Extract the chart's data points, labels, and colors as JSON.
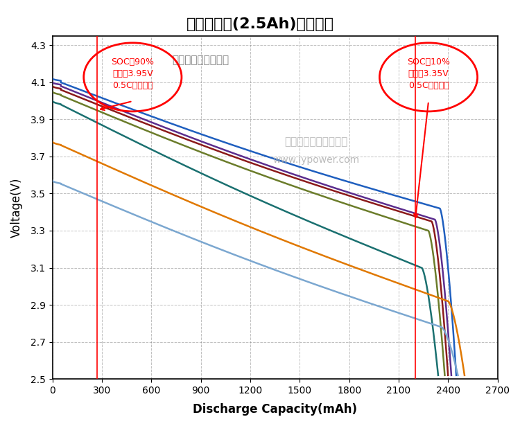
{
  "title": "三元锂电池(2.5Ah)放电曲线",
  "xlabel": "Discharge Capacity(mAh)",
  "ylabel": "Voltage(V)",
  "xlim": [
    0,
    2700
  ],
  "ylim": [
    2.5,
    4.35
  ],
  "yticks": [
    2.5,
    2.7,
    2.9,
    3.1,
    3.3,
    3.5,
    3.7,
    3.9,
    4.1,
    4.3
  ],
  "xticks": [
    0,
    300,
    600,
    900,
    1200,
    1500,
    1800,
    2100,
    2400,
    2700
  ],
  "vline1_x": 270,
  "vline2_x": 2200,
  "annotation_text_left": "SOC＝90%\n电压＝3.95V\n0.5C放电情况",
  "annotation_text_right": "SOC＝10%\n电压＝3.35V\n0.5C放电情况",
  "watermark_line1": "深圳爱阳动力有限公司",
  "watermark_line2": "www.iypower.com",
  "subtitle": "不同高倍率放电曲线",
  "curves": [
    {
      "color": "#3366CC",
      "start_v": 4.12,
      "mid_v": 3.75,
      "end_x": 2450,
      "drop_v": 3.42,
      "final_v": 2.5
    },
    {
      "color": "#660099",
      "start_v": 4.1,
      "mid_v": 3.68,
      "end_x": 2420,
      "drop_v": 3.35,
      "final_v": 2.5
    },
    {
      "color": "#8B0000",
      "start_v": 4.09,
      "mid_v": 3.6,
      "end_x": 2400,
      "drop_v": 3.35,
      "final_v": 2.5
    },
    {
      "color": "#556B2F",
      "start_v": 4.06,
      "mid_v": 3.5,
      "end_x": 2380,
      "drop_v": 3.3,
      "final_v": 2.5
    },
    {
      "color": "#008080",
      "start_v": 4.01,
      "mid_v": 3.4,
      "end_x": 2350,
      "drop_v": 3.1,
      "final_v": 2.5
    },
    {
      "color": "#FF8C00",
      "start_v": 3.78,
      "mid_v": 3.2,
      "end_x": 2500,
      "drop_v": 2.95,
      "final_v": 2.5
    },
    {
      "color": "#6699CC",
      "start_v": 3.58,
      "mid_v": 3.05,
      "end_x": 2460,
      "drop_v": 2.8,
      "final_v": 2.5
    }
  ]
}
